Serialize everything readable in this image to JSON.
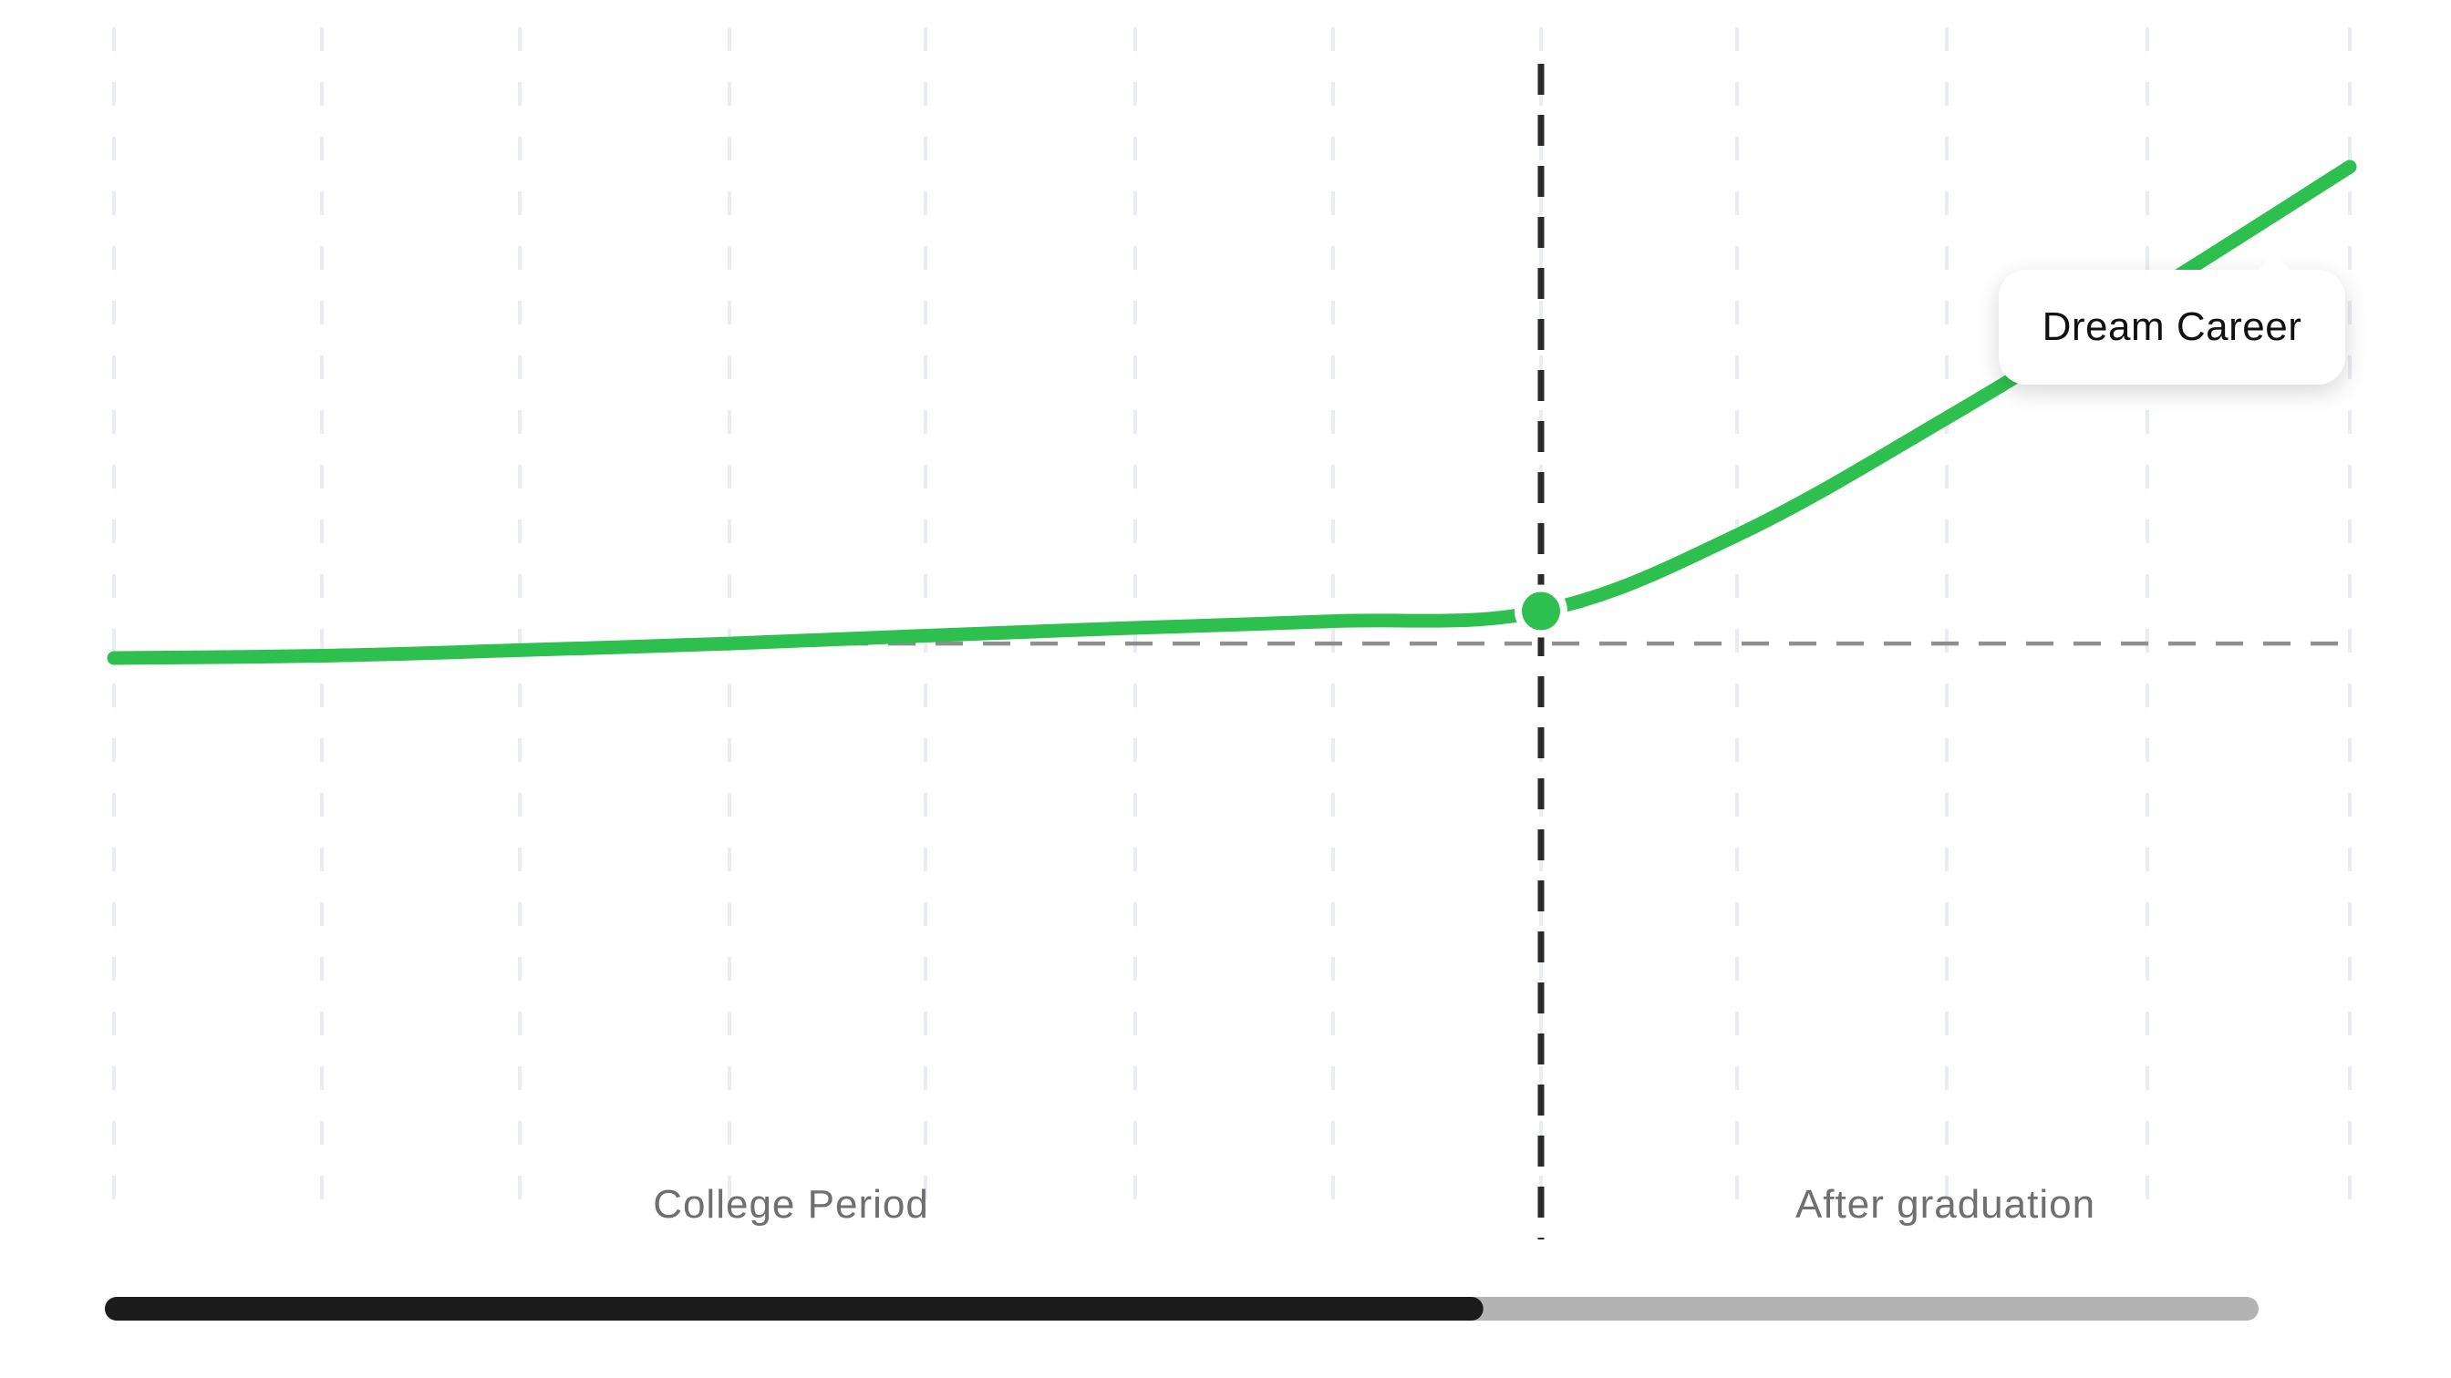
{
  "chart_data": {
    "type": "line",
    "title": "",
    "xlabel": "",
    "ylabel": "",
    "grid": true,
    "x": [
      0,
      1,
      2,
      3,
      4,
      5,
      6,
      7,
      8,
      9,
      10,
      11
    ],
    "series": [
      {
        "values": [
          0.0,
          0.2,
          0.7,
          1.3,
          2.0,
          2.7,
          3.3,
          4.2,
          11.0,
          21.5,
          32.5,
          44.0
        ]
      }
    ],
    "ylim": [
      -35,
      50
    ],
    "xlim": [
      0,
      11
    ],
    "baseline_y": 1.3,
    "divider_x": 7,
    "highlight_point": {
      "x": 7,
      "y": 4.2
    },
    "regions": [
      {
        "label": "College Period",
        "from": 0,
        "to": 7
      },
      {
        "label": "After graduation",
        "from": 7,
        "to": 11
      }
    ],
    "annotation": {
      "text": "Dream Career",
      "x": 11,
      "y": 44.0
    },
    "progress": 0.64,
    "colors": {
      "line": "#2ec04f",
      "progress_fill": "#1c1c1c",
      "progress_track": "#b3b3b3",
      "divider": "#2a2a2a",
      "baseline": "#8f8f8f",
      "grid": "#e9ecf2"
    }
  }
}
